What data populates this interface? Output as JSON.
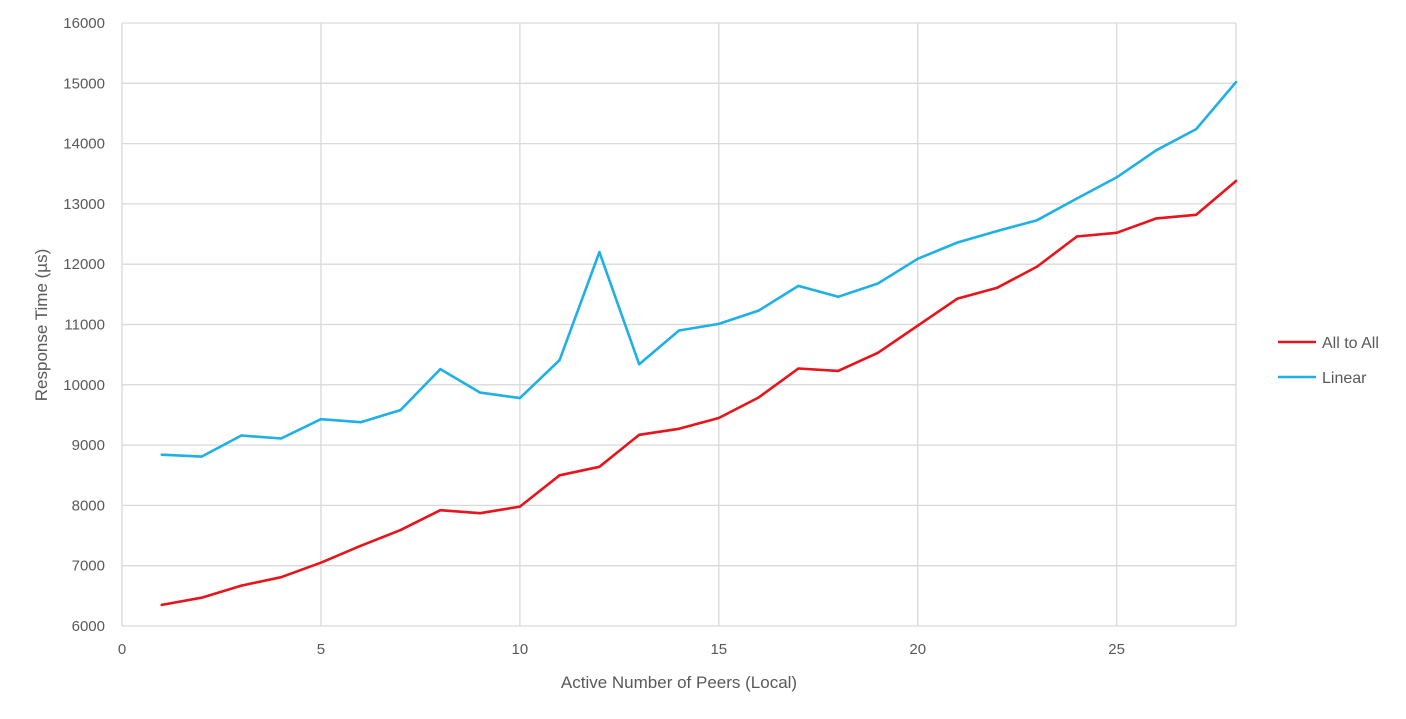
{
  "chart_data": {
    "type": "line",
    "title": "",
    "xlabel": "Active Number of Peers (Local)",
    "ylabel": "Response Time (µs)",
    "xlim": [
      0,
      28
    ],
    "ylim": [
      6000,
      16000
    ],
    "xticks": [
      0,
      5,
      10,
      15,
      20,
      25
    ],
    "yticks": [
      6000,
      7000,
      8000,
      9000,
      10000,
      11000,
      12000,
      13000,
      14000,
      15000,
      16000
    ],
    "grid": true,
    "legend_position": "right",
    "x": [
      1,
      2,
      3,
      4,
      5,
      6,
      7,
      8,
      9,
      10,
      11,
      12,
      13,
      14,
      15,
      16,
      17,
      18,
      19,
      20,
      21,
      22,
      23,
      24,
      25,
      26,
      27,
      28
    ],
    "series": [
      {
        "name": "All to All",
        "color": "#e8141b",
        "values": [
          6350,
          6470,
          6670,
          6810,
          7050,
          7330,
          7590,
          7920,
          7870,
          7980,
          8500,
          8640,
          9170,
          9270,
          9450,
          9790,
          10270,
          10230,
          10530,
          10980,
          11430,
          11610,
          11960,
          12460,
          12520,
          12760,
          12820,
          13380
        ]
      },
      {
        "name": "Linear",
        "color": "#1eb0e6",
        "values": [
          8840,
          8810,
          9160,
          9110,
          9430,
          9380,
          9580,
          10260,
          9870,
          9780,
          10410,
          12200,
          10340,
          10900,
          11010,
          11230,
          11640,
          11460,
          11680,
          12090,
          12360,
          12550,
          12730,
          13090,
          13440,
          13890,
          14240,
          15020
        ]
      }
    ]
  }
}
